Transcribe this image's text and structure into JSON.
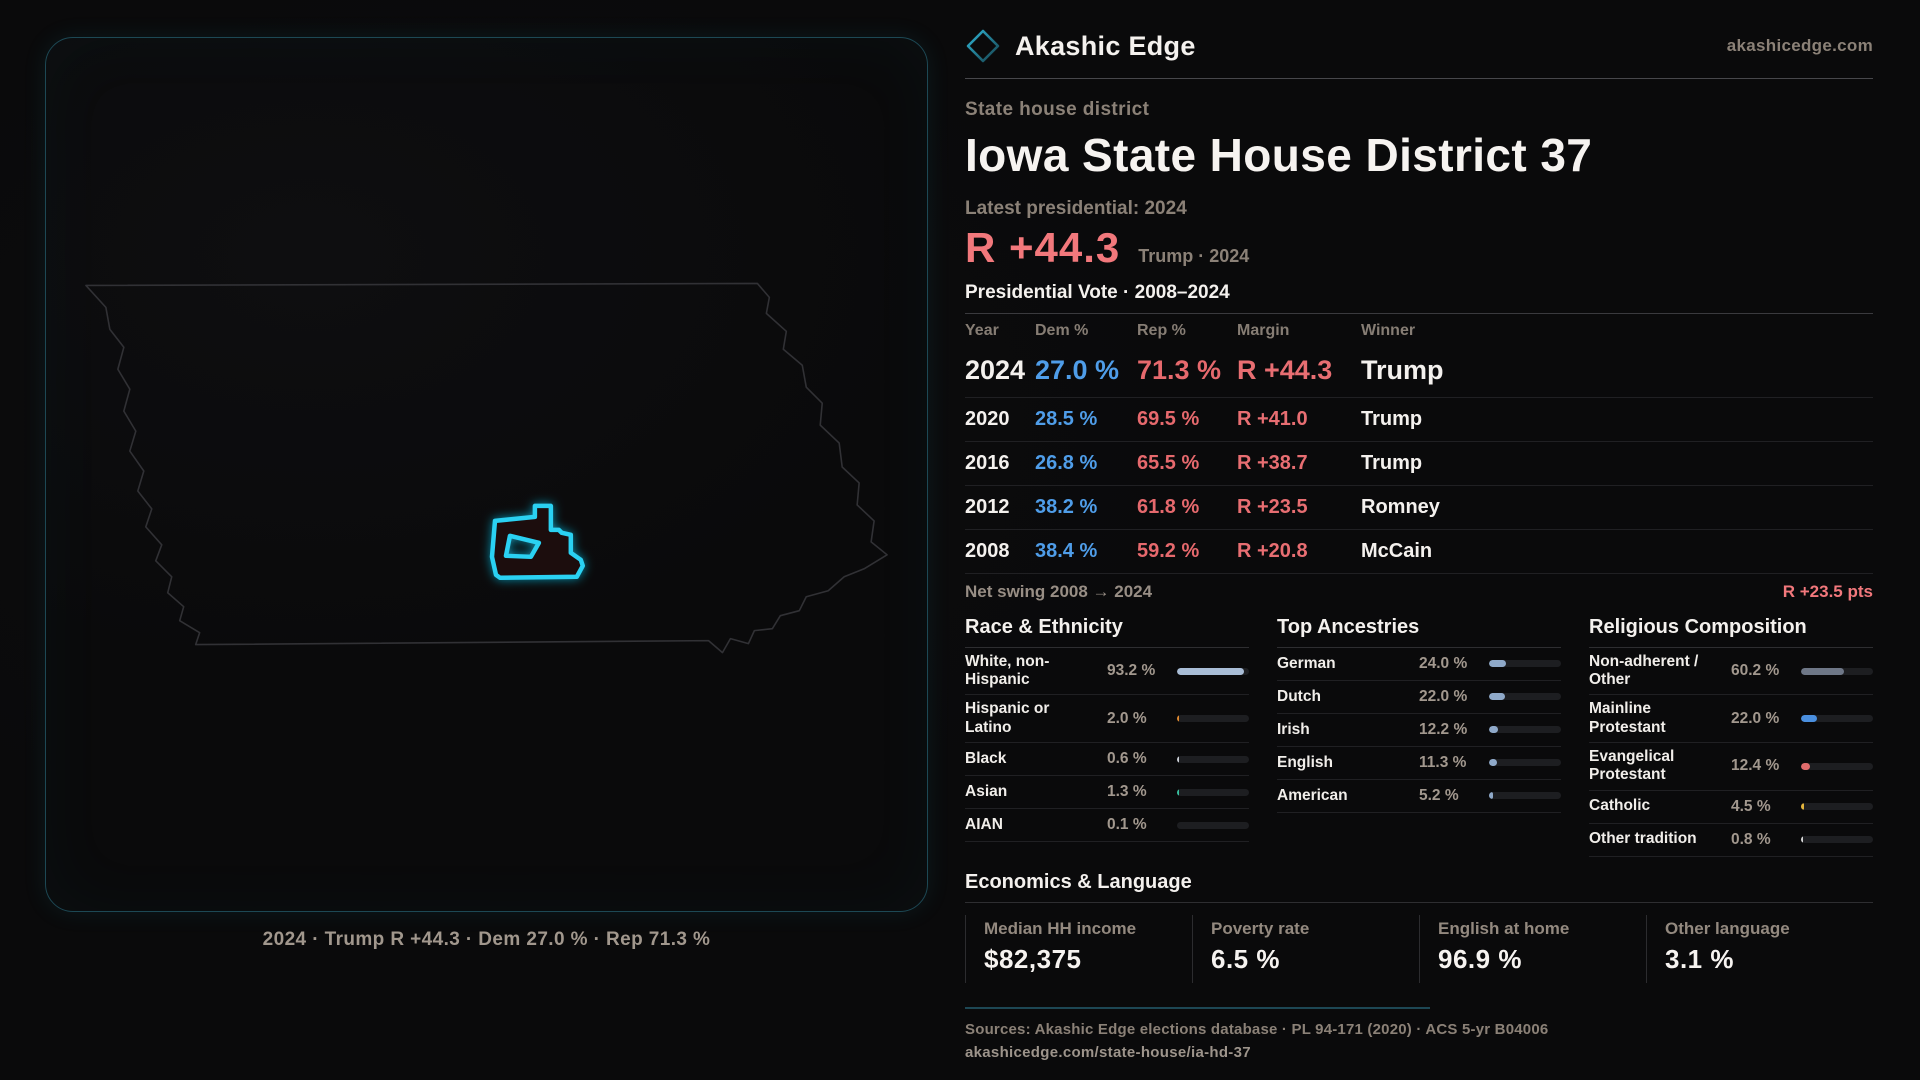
{
  "brand": {
    "name": "Akashic Edge",
    "domain": "akashicedge.com"
  },
  "page": {
    "kicker": "State house district",
    "title": "Iowa State House District 37",
    "latest_label": "Latest presidential: 2024",
    "margin_value": "R +44.3",
    "margin_context": "Trump · 2024"
  },
  "map": {
    "caption": "2024 · Trump R +44.3 · Dem 27.0 % · Rep 71.3 %"
  },
  "vote_table": {
    "title": "Presidential Vote · 2008–2024",
    "columns": [
      "Year",
      "Dem %",
      "Rep %",
      "Margin",
      "Winner"
    ],
    "rows": [
      {
        "year": "2024",
        "dem": "27.0 %",
        "rep": "71.3 %",
        "margin": "R +44.3",
        "winner": "Trump",
        "emphasis": true
      },
      {
        "year": "2020",
        "dem": "28.5 %",
        "rep": "69.5 %",
        "margin": "R +41.0",
        "winner": "Trump",
        "emphasis": false
      },
      {
        "year": "2016",
        "dem": "26.8 %",
        "rep": "65.5 %",
        "margin": "R +38.7",
        "winner": "Trump",
        "emphasis": false
      },
      {
        "year": "2012",
        "dem": "38.2 %",
        "rep": "61.8 %",
        "margin": "R +23.5",
        "winner": "Romney",
        "emphasis": false
      },
      {
        "year": "2008",
        "dem": "38.4 %",
        "rep": "59.2 %",
        "margin": "R +20.8",
        "winner": "McCain",
        "emphasis": false
      }
    ]
  },
  "net_swing": {
    "label": "Net swing 2008 → 2024",
    "value": "R +23.5 pts"
  },
  "demographics": [
    {
      "title": "Race & Ethnicity",
      "rows": [
        {
          "label": "White, non-Hispanic",
          "value": "93.2 %",
          "pct": 93.2,
          "color": "#a9bdd6"
        },
        {
          "label": "Hispanic or Latino",
          "value": "2.0 %",
          "pct": 2.0,
          "color": "#e0892f"
        },
        {
          "label": "Black",
          "value": "0.6 %",
          "pct": 0.6,
          "color": "#c9cdd4"
        },
        {
          "label": "Asian",
          "value": "1.3 %",
          "pct": 1.3,
          "color": "#37bf9e"
        },
        {
          "label": "AIAN",
          "value": "0.1 %",
          "pct": 0.1,
          "color": "#c9cdd4"
        }
      ]
    },
    {
      "title": "Top Ancestries",
      "rows": [
        {
          "label": "German",
          "value": "24.0 %",
          "pct": 24.0,
          "color": "#8fa9c9"
        },
        {
          "label": "Dutch",
          "value": "22.0 %",
          "pct": 22.0,
          "color": "#8fa9c9"
        },
        {
          "label": "Irish",
          "value": "12.2 %",
          "pct": 12.2,
          "color": "#8fa9c9"
        },
        {
          "label": "English",
          "value": "11.3 %",
          "pct": 11.3,
          "color": "#8fa9c9"
        },
        {
          "label": "American",
          "value": "5.2 %",
          "pct": 5.2,
          "color": "#8fa9c9"
        }
      ]
    },
    {
      "title": "Religious Composition",
      "rows": [
        {
          "label": "Non-adherent / Other",
          "value": "60.2 %",
          "pct": 60.2,
          "color": "#6e7787"
        },
        {
          "label": "Mainline Protestant",
          "value": "22.0 %",
          "pct": 22.0,
          "color": "#4a8fdf"
        },
        {
          "label": "Evangelical Protestant",
          "value": "12.4 %",
          "pct": 12.4,
          "color": "#e06b6b"
        },
        {
          "label": "Catholic",
          "value": "4.5 %",
          "pct": 4.5,
          "color": "#e3b43d"
        },
        {
          "label": "Other tradition",
          "value": "0.8 %",
          "pct": 0.8,
          "color": "#d6d6d6"
        }
      ]
    }
  ],
  "economics": {
    "title": "Economics & Language",
    "stats": [
      {
        "label": "Median HH income",
        "value": "$82,375"
      },
      {
        "label": "Poverty rate",
        "value": "6.5 %"
      },
      {
        "label": "English at home",
        "value": "96.9 %"
      },
      {
        "label": "Other language",
        "value": "3.1 %"
      }
    ]
  },
  "footer": {
    "sources": "Sources: Akashic Edge elections database · PL 94-171 (2020) · ACS 5-yr B04006",
    "permalink": "akashicedge.com/state-house/ia-hd-37"
  },
  "colors": {
    "accent_cyan": "#2bd1f2",
    "dem_blue": "#4f9de9",
    "rep_red": "#e6696d",
    "margin_salmon": "#f2787c",
    "panel_border": "#1d4854"
  }
}
